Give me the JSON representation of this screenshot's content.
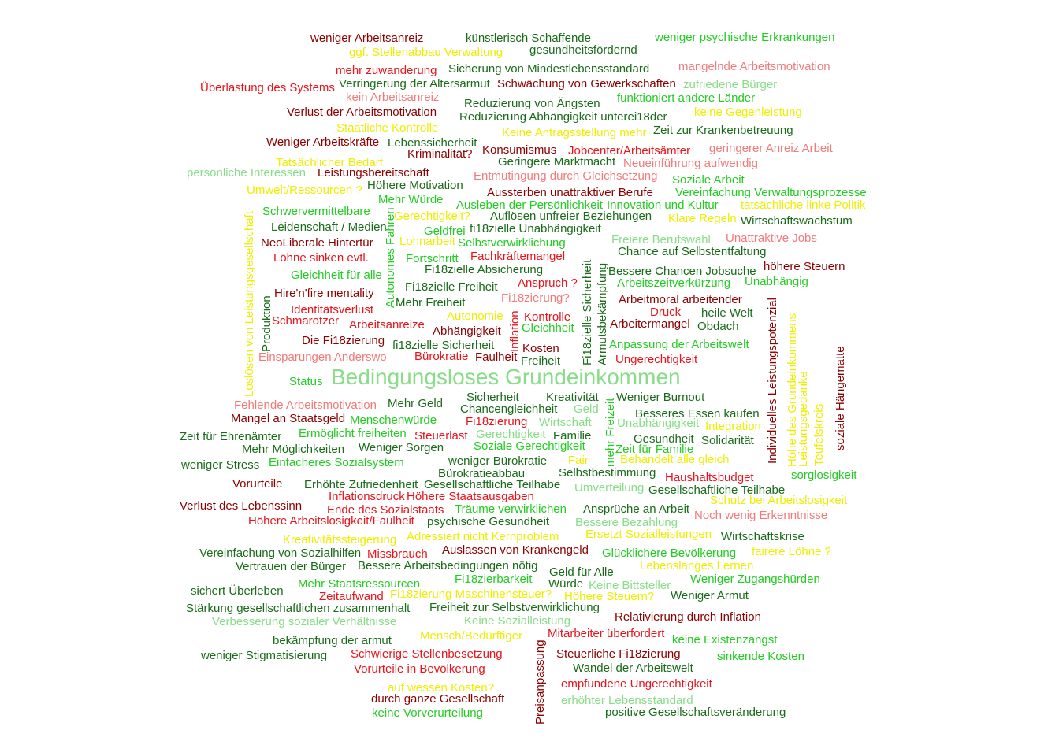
{
  "cloud": {
    "center": "Bedingungsloses Grundeinkommen",
    "words": [
      "weniger Arbeitsanreiz",
      "künstlerisch Schaffende",
      "weniger psychische Erkrankungen",
      "ggf. Stellenabbau Verwaltung",
      "gesundheitsfördernd",
      "mehr zuwanderung",
      "Sicherung von Mindestlebensstandard",
      "mangelnde Arbeitsmotivation",
      "Überlastung des Systems",
      "Verringerung der Altersarmut",
      "Schwächung von Gewerkschaften",
      "zufriedene Bürger",
      "kein Arbeitsanreiz",
      "funktioniert andere Länder",
      "Reduzierung von Ängsten",
      "Verlust der Arbeitsmotivation",
      "keine Gegenleistung",
      "Reduzierung Abhängigkeit unterei18der",
      "Staatliche Kontrolle",
      "Keine Antragsstellung mehr",
      "Zeit zur Krankenbetreuung",
      "Weniger Arbeitskräfte",
      "Lebenssicherheit",
      "Konsumismus",
      "Jobcenter/Arbeitsämter",
      "geringerer Anreiz Arbeit",
      "Kriminalität?",
      "Tatsächlicher Bedarf",
      "Geringere Marktmacht",
      "Neueinführung aufwendig",
      "persönliche Interessen",
      "Leistungsbereitschaft",
      "Entmutingung durch Gleichsetzung",
      "Höhere Motivation",
      "Soziale Arbeit",
      "Umwelt/Ressourcen ?",
      "Aussterben unattraktiver Berufe",
      "Vereinfachung Verwaltungsprozesse",
      "Mehr Würde",
      "Ausleben der Persönlichkeit",
      "Innovation und Kultur",
      "tatsächliche linke Politik",
      "Schwervermittelbare",
      "Gerechtigkeit?",
      "Auflösen unfreier Beziehungen",
      "Klare Regeln",
      "Wirtschaftswachstum",
      "Leidenschaft / Medien",
      "Geldfrei",
      "fi18zielle Unabhängigkeit",
      "NeoLiberale Hintertür",
      "Lohnarbeit",
      "Selbstverwirklichung",
      "Freiere Berufswahl",
      "Unattraktive Jobs",
      "Chance auf Selbstentfaltung",
      "Löhne sinken evtl.",
      "Fortschritt",
      "Fachkräftemangel",
      "höhere Steuern",
      "Fi18zielle Absicherung",
      "Bessere Chancen Jobsuche",
      "Gleichheit für alle",
      "Anspruch ?",
      "Arbeitszeitverkürzung",
      "Unabhängig",
      "Fi18zielle Freiheit",
      "Hire'n'fire mentality",
      "Fi18zierung?",
      "Arbeitmoral arbeitender",
      "Mehr Freiheit",
      "Identitätsverlust",
      "Druck",
      "heile Welt",
      "Autonomie",
      "Kontrolle",
      "Schmarotzer",
      "Arbeitermangel",
      "Obdach",
      "Arbeitsanreize",
      "Gleichheit",
      "Abhängigkeit",
      "Die Fi18zierung",
      "fi18zielle Sicherheit",
      "Anpassung der Arbeitswelt",
      "Kosten",
      "Einsparungen Anderswo",
      "Bürokratie",
      "Faulheit",
      "Ungerechtigkeit",
      "Freiheit",
      "Status",
      "Sicherheit",
      "Kreativität",
      "Weniger Burnout",
      "Fehlende Arbeitsmotivation",
      "Mehr Geld",
      "Chancengleichheit",
      "Geld",
      "Besseres Essen kaufen",
      "Mangel an Staatsgeld",
      "Menschenwürde",
      "Wirtschaft",
      "Fi18zierung",
      "Unabhängigkeit",
      "Integration",
      "Zeit für Ehrenämter",
      "Ermöglicht freiheiten",
      "Steuerlast",
      "Gerechtigkeit",
      "Familie",
      "Gesundheit",
      "Solidarität",
      "Mehr Möglichkeiten",
      "Weniger Sorgen",
      "Soziale Gerechtigkeit",
      "Zeit für Familie",
      "weniger Stress",
      "Einfacheres Sozialsystem",
      "weniger Bürokratie",
      "Fair",
      "Behandelt alle gleich",
      "Bürokratieabbau",
      "Selbstbestimmung",
      "sorglosigkeit",
      "Vorurteile",
      "Erhöhte Zufriedenheit",
      "Gesellschaftliche Teilhabe",
      "Haushaltsbudget",
      "Umverteilung",
      "Gesellschaftliche Teilhabe",
      "Inflationsdruck",
      "Höhere Staatsausgaben",
      "Schutz bei Arbeitslosigkeit",
      "Verlust des Lebenssinn",
      "Ansprüche an Arbeit",
      "Ende des Sozialstaats",
      "Träume verwirklichen",
      "Noch wenig Erkenntnisse",
      "Höhere Arbeitslosigkeit/Faulheit",
      "psychische Gesundheit",
      "Bessere Bezahlung",
      "Adressiert nicht Kernproblem",
      "Ersetzt Sozialleistungen",
      "Wirtschaftskrise",
      "Kreativitätssteigerung",
      "Vereinfachung von Sozialhilfen",
      "Missbrauch",
      "Auslassen von Krankengeld",
      "Glücklichere Bevölkerung",
      "fairere Löhne ?",
      "Vertrauen der Bürger",
      "Bessere Arbeitsbedingungen nötig",
      "Lebenslanges Lernen",
      "Geld für Alle",
      "Fi18zierbarkeit",
      "Weniger Zugangshürden",
      "Mehr Staatsressourcen",
      "Würde",
      "Keine Bittsteller",
      "sichert Überleben",
      "Fi18zierung Maschinensteuer?",
      "Höhere Steuern?",
      "Weniger Armut",
      "Zeitaufwand",
      "Stärkung gesellschaftlichen zusammenhalt",
      "Freiheit zur Selbstverwirklichung",
      "Relativierung durch Inflation",
      "Verbesserung sozialer Verhältnisse",
      "Keine Sozialleistung",
      "Mitarbeiter überfordert",
      "bekämpfung der armut",
      "Mensch/Bedürftiger",
      "keine Existenzangst",
      "Steuerliche Fi18zierung",
      "weniger Stigmatisierung",
      "Schwierige Stellenbesetzung",
      "sinkende Kosten",
      "Wandel der Arbeitswelt",
      "Vorurteile in Bevölkerung",
      "empfundene Ungerechtigkeit",
      "auf wessen Kosten?",
      "durch ganze Gesellschaft",
      "erhöhter Lebensstandard",
      "keine Vorverurteilung",
      "positive Gesellschaftsveränderung"
    ],
    "vertical_words": [
      "Loslösen von Leistungsgesellschaft",
      "Produktion",
      "Autonomes Fahren",
      "Inflation",
      "Fi18zielle Sicherheit",
      "Armutsbekämpfung",
      "mehr Freizeit",
      "Preisanpassung",
      "Individuelles Leistungspotenzial",
      "Höhe des Grundeinkommens",
      "Leistungsgedanke",
      "Teufelskreis",
      "soziale Hängematte"
    ],
    "palette": {
      "dark_red": "#8b0000",
      "red": "#e8141b",
      "light_red": "#f07b7b",
      "dark_green": "#1a6b1a",
      "green": "#22cc22",
      "light_green": "#88dd88",
      "yellow": "#eeee00"
    }
  }
}
